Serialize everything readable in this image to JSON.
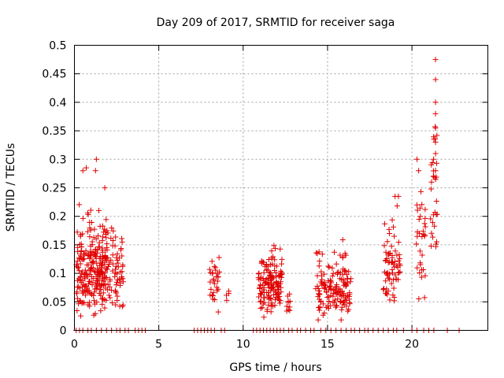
{
  "chart_data": {
    "type": "scatter",
    "title": "Day 209 of 2017, SRMTID for receiver saga",
    "xlabel": "GPS time / hours",
    "ylabel": "SRMTID / TECUs",
    "xlim": [
      0,
      24.5
    ],
    "ylim": [
      0,
      0.5
    ],
    "xticks": [
      0,
      5,
      10,
      15,
      20
    ],
    "xtick_labels": [
      "0",
      "5",
      "10",
      "15",
      "20"
    ],
    "yticks": [
      0,
      0.05,
      0.1,
      0.15,
      0.2,
      0.25,
      0.3,
      0.35,
      0.4,
      0.45,
      0.5
    ],
    "ytick_labels": [
      "0",
      "0.05",
      "0.1",
      "0.15",
      "0.2",
      "0.25",
      "0.3",
      "0.35",
      "0.4",
      "0.45",
      "0.5"
    ],
    "grid": true,
    "marker": "+",
    "color": "#e00000",
    "clusters": [
      {
        "x": [
          0.1,
          1.3
        ],
        "y": [
          0.02,
          0.24
        ],
        "n": 150
      },
      {
        "x": [
          1.3,
          2.0
        ],
        "y": [
          0.02,
          0.25
        ],
        "n": 110
      },
      {
        "x": [
          2.0,
          2.9
        ],
        "y": [
          0.03,
          0.2
        ],
        "n": 60
      },
      {
        "x": [
          8.0,
          8.6
        ],
        "y": [
          0.03,
          0.15
        ],
        "n": 30
      },
      {
        "x": [
          9.0,
          9.4
        ],
        "y": [
          0.04,
          0.08
        ],
        "n": 4
      },
      {
        "x": [
          10.9,
          12.3
        ],
        "y": [
          0.02,
          0.17
        ],
        "n": 150
      },
      {
        "x": [
          12.5,
          12.9
        ],
        "y": [
          0.03,
          0.08
        ],
        "n": 10
      },
      {
        "x": [
          14.3,
          16.4
        ],
        "y": [
          0.01,
          0.18
        ],
        "n": 150
      },
      {
        "x": [
          18.3,
          19.3
        ],
        "y": [
          0.03,
          0.23
        ],
        "n": 70
      },
      {
        "x": [
          20.2,
          20.8
        ],
        "y": [
          0.01,
          0.3
        ],
        "n": 30
      },
      {
        "x": [
          21.1,
          21.5
        ],
        "y": [
          0.08,
          0.48
        ],
        "n": 30
      }
    ],
    "points": [
      [
        0.5,
        0.28
      ],
      [
        0.7,
        0.285
      ],
      [
        1.3,
        0.3
      ],
      [
        1.8,
        0.25
      ],
      [
        1.25,
        0.28
      ],
      [
        20.3,
        0.3
      ],
      [
        20.4,
        0.28
      ],
      [
        21.4,
        0.475
      ],
      [
        21.4,
        0.44
      ],
      [
        21.4,
        0.4
      ],
      [
        21.4,
        0.38
      ],
      [
        21.4,
        0.355
      ],
      [
        21.4,
        0.33
      ],
      [
        21.4,
        0.31
      ],
      [
        21.4,
        0.28
      ],
      [
        21.4,
        0.265
      ],
      [
        19.2,
        0.235
      ],
      [
        19.0,
        0.235
      ],
      [
        20.5,
        0.2
      ],
      [
        20.3,
        0.22
      ]
    ],
    "zero_points": [
      0.1,
      0.3,
      0.5,
      0.8,
      1.0,
      1.3,
      1.6,
      1.9,
      2.2,
      2.5,
      2.7,
      3.0,
      3.2,
      3.6,
      3.8,
      4.0,
      4.2,
      7.1,
      7.3,
      7.5,
      7.7,
      7.9,
      8.1,
      8.3,
      8.7,
      8.9,
      10.6,
      10.8,
      11.0,
      11.2,
      11.4,
      11.6,
      11.8,
      12.0,
      12.2,
      12.4,
      12.7,
      12.9,
      13.2,
      13.4,
      13.7,
      14.0,
      14.2,
      14.6,
      14.9,
      15.2,
      15.5,
      15.8,
      16.1,
      16.4,
      16.6,
      16.9,
      17.2,
      17.4,
      17.7,
      18.0,
      18.3,
      18.6,
      18.9,
      19.1,
      19.5,
      20.0,
      20.3,
      20.7,
      21.0,
      21.3,
      22.1,
      22.8
    ]
  }
}
